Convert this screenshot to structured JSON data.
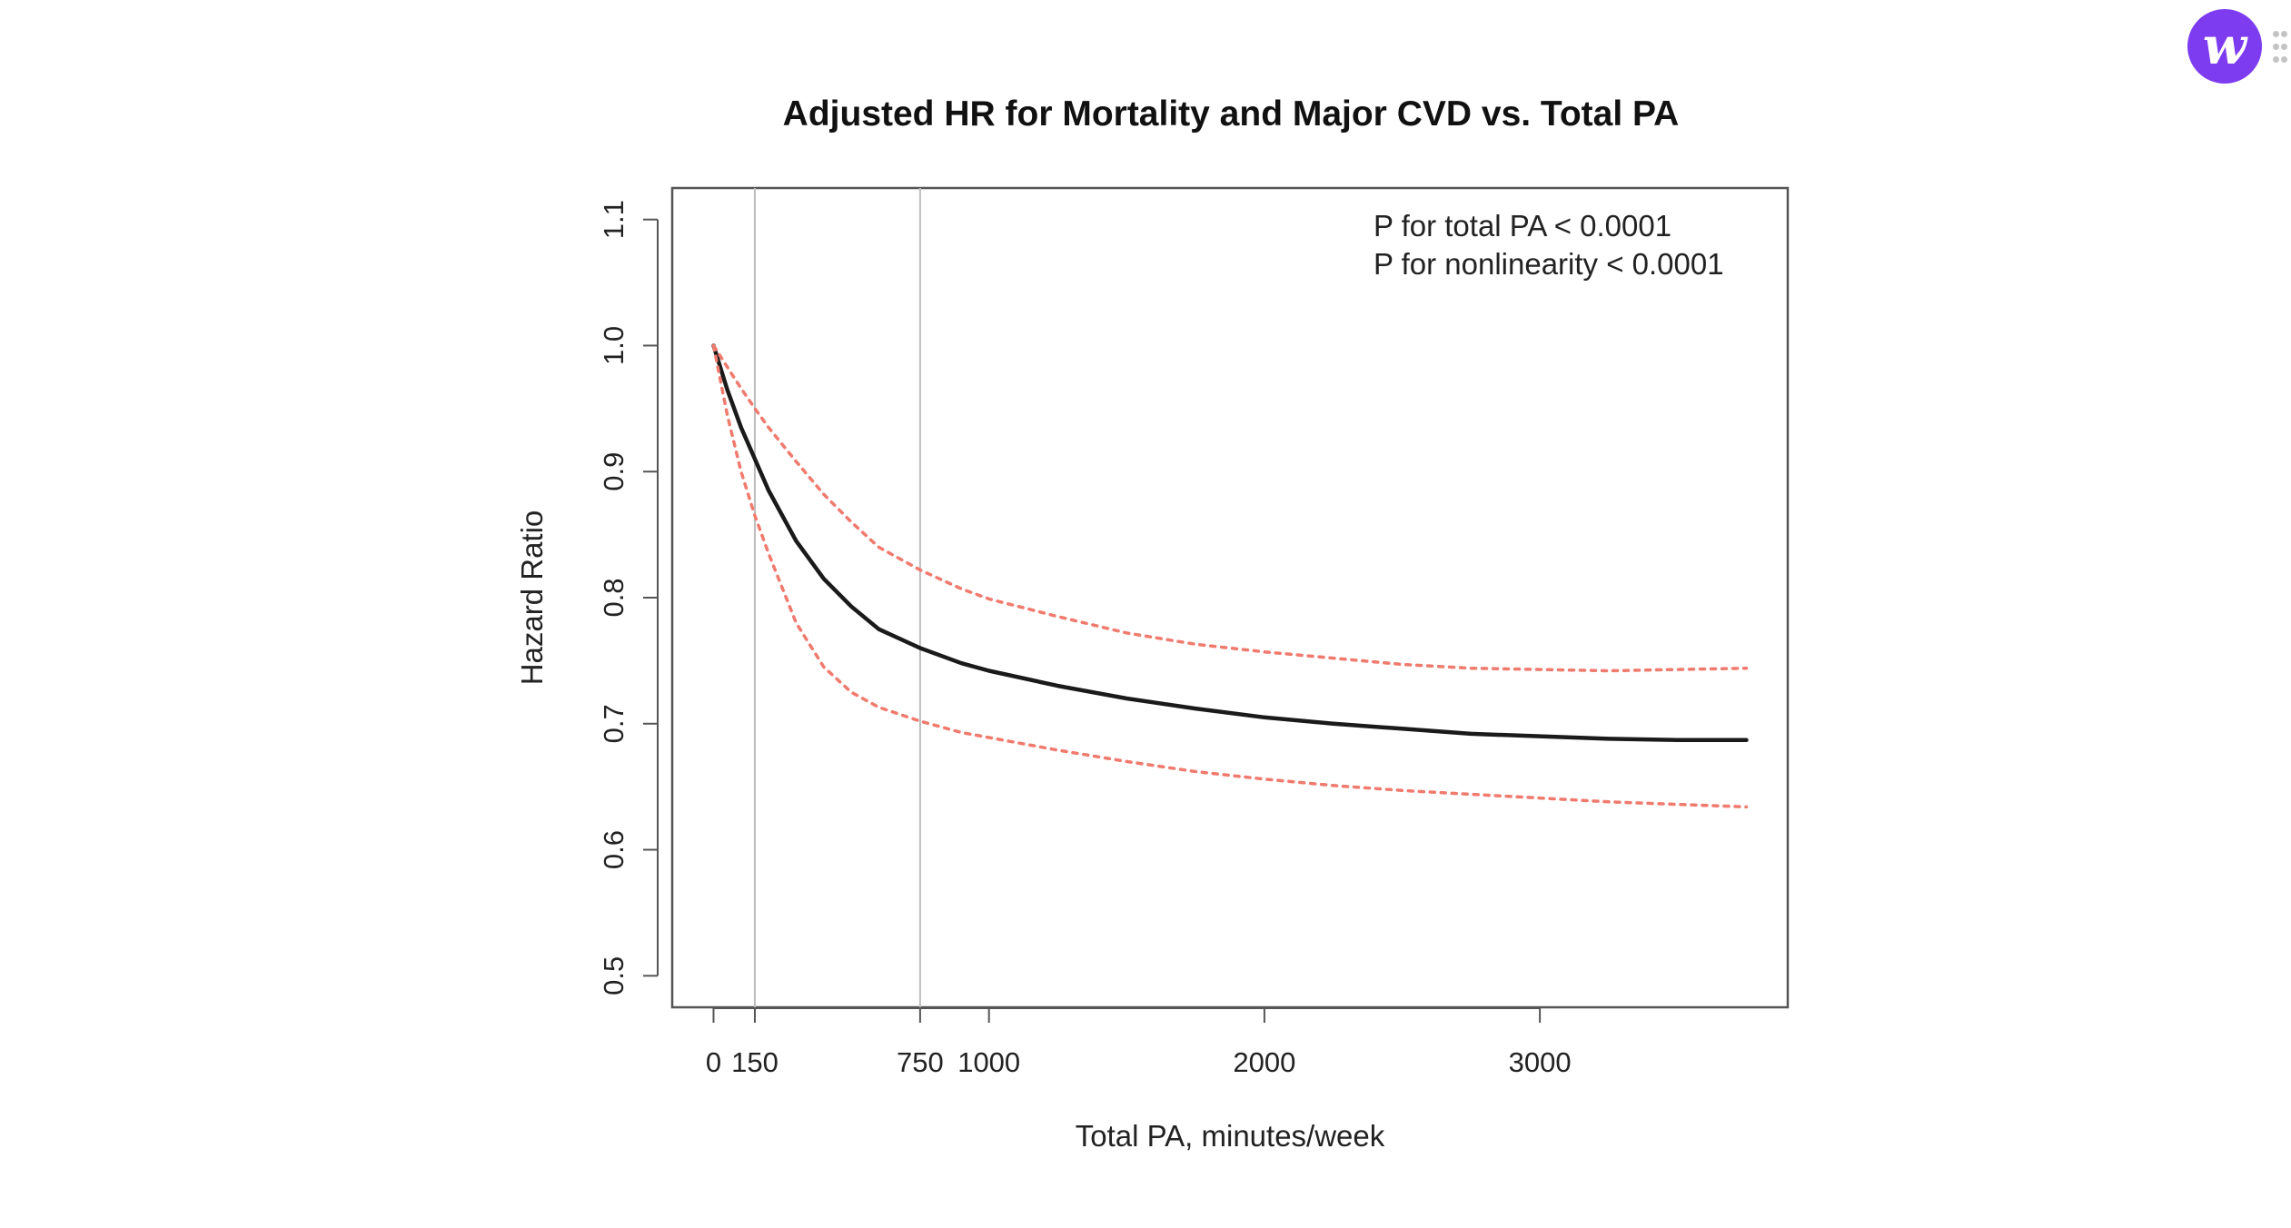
{
  "chart_data": {
    "type": "line",
    "title": "Adjusted HR for Mortality and Major CVD vs. Total PA",
    "xlabel": "Total PA, minutes/week",
    "ylabel": "Hazard Ratio",
    "xlim": [
      -150,
      3900
    ],
    "ylim": [
      0.475,
      1.125
    ],
    "x_ticks": [
      0,
      150,
      750,
      1000,
      2000,
      3000
    ],
    "x_tick_labels": [
      "0",
      "150",
      "750",
      "1000",
      "2000",
      "3000"
    ],
    "y_ticks": [
      0.5,
      0.6,
      0.7,
      0.8,
      0.9,
      1.0,
      1.1
    ],
    "y_tick_labels": [
      "0.5",
      "0.6",
      "0.7",
      "0.8",
      "0.9",
      "1.0",
      "1.1"
    ],
    "reference_lines_x": [
      150,
      750
    ],
    "annotations": [
      "P for total PA < 0.0001",
      "P for nonlinearity < 0.0001"
    ],
    "grid": false,
    "series": [
      {
        "style": "solid",
        "color": "#1a1a1a",
        "x": [
          0,
          50,
          100,
          150,
          200,
          300,
          400,
          500,
          600,
          750,
          900,
          1000,
          1250,
          1500,
          1750,
          2000,
          2250,
          2500,
          2750,
          3000,
          3250,
          3500,
          3750
        ],
        "y": [
          1.0,
          0.965,
          0.935,
          0.91,
          0.885,
          0.845,
          0.815,
          0.793,
          0.775,
          0.76,
          0.748,
          0.742,
          0.73,
          0.72,
          0.712,
          0.705,
          0.7,
          0.696,
          0.692,
          0.69,
          0.688,
          0.687,
          0.687
        ]
      },
      {
        "style": "dotted",
        "color": "#f07a6e",
        "x": [
          0,
          50,
          100,
          150,
          200,
          300,
          400,
          500,
          600,
          750,
          900,
          1000,
          1250,
          1500,
          1750,
          2000,
          2250,
          2500,
          2750,
          3000,
          3250,
          3500,
          3750
        ],
        "y": [
          1.0,
          0.983,
          0.966,
          0.95,
          0.935,
          0.908,
          0.882,
          0.86,
          0.84,
          0.822,
          0.807,
          0.799,
          0.785,
          0.772,
          0.763,
          0.757,
          0.752,
          0.747,
          0.744,
          0.743,
          0.742,
          0.743,
          0.744
        ]
      },
      {
        "style": "dotted",
        "color": "#f07a6e",
        "x": [
          0,
          50,
          100,
          150,
          200,
          300,
          400,
          500,
          600,
          750,
          900,
          1000,
          1250,
          1500,
          1750,
          2000,
          2250,
          2500,
          2750,
          3000,
          3250,
          3500,
          3750
        ],
        "y": [
          1.0,
          0.945,
          0.9,
          0.865,
          0.835,
          0.78,
          0.745,
          0.725,
          0.713,
          0.702,
          0.693,
          0.689,
          0.679,
          0.67,
          0.662,
          0.656,
          0.651,
          0.647,
          0.644,
          0.641,
          0.638,
          0.636,
          0.634
        ]
      }
    ]
  },
  "badge": {
    "letter": "w",
    "color": "#7d3cf0",
    "icon": "app-logo-icon"
  },
  "grip": {
    "icon": "grip-dots-icon"
  }
}
